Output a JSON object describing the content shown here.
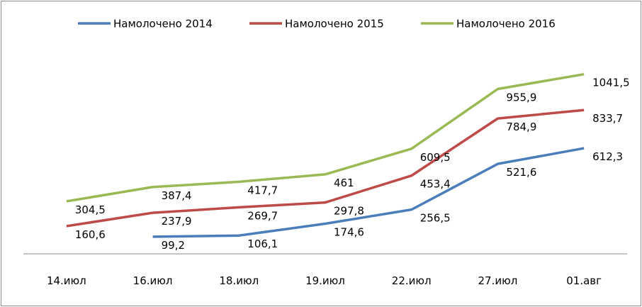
{
  "chart_data": {
    "type": "line",
    "title": "",
    "xlabel": "",
    "ylabel": "",
    "categories": [
      "14.июл",
      "16.июл",
      "18.июл",
      "19.июл",
      "22.июл",
      "27.июл",
      "01.авг"
    ],
    "ylim": [
      0,
      1100
    ],
    "grid": false,
    "legend_position": "top",
    "series": [
      {
        "name": "Намолочено 2014",
        "color": "#4a7ebb",
        "values": [
          null,
          99.2,
          106.1,
          174.6,
          256.5,
          521.6,
          612.3
        ],
        "labels": [
          null,
          "99,2",
          "106,1",
          "174,6",
          "256,5",
          "521,6",
          "612,3"
        ]
      },
      {
        "name": "Намолочено 2015",
        "color": "#be4b48",
        "values": [
          160.6,
          237.9,
          269.7,
          297.8,
          453.4,
          784.9,
          833.7
        ],
        "labels": [
          "160,6",
          "237,9",
          "269,7",
          "297,8",
          "453,4",
          "784,9",
          "833,7"
        ]
      },
      {
        "name": "Намолочено 2016",
        "color": "#98b954",
        "values": [
          304.5,
          387.4,
          417.7,
          461,
          609.5,
          955.9,
          1041.5
        ],
        "labels": [
          "304,5",
          "387,4",
          "417,7",
          "461",
          "609,5",
          "955,9",
          "1041,5"
        ]
      }
    ]
  }
}
